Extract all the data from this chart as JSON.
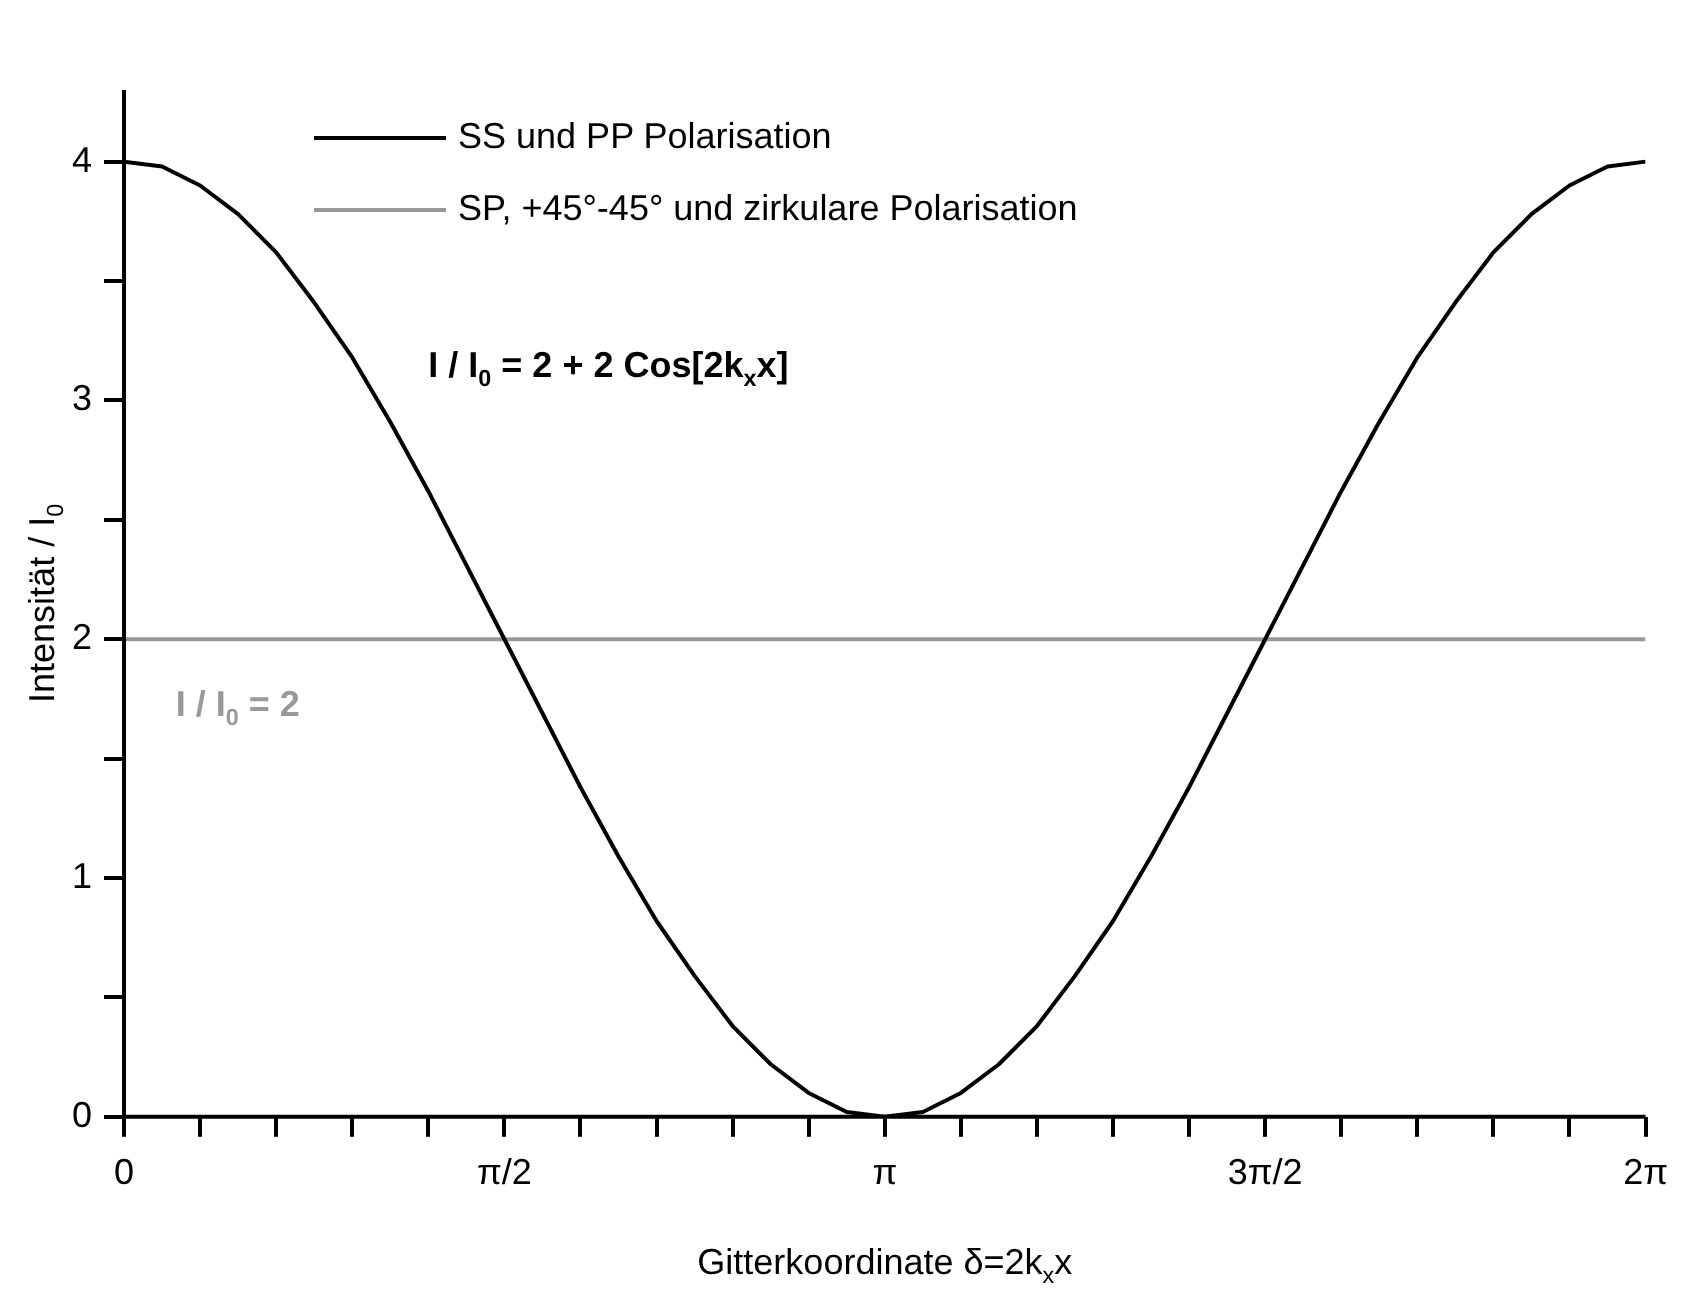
{
  "chart_data": {
    "type": "line",
    "xlabel": "Gitterkoordinate δ=2k$_{x}$x",
    "ylabel": "Intensität / I$_{0}$",
    "xlim": [
      0,
      6.2832
    ],
    "ylim": [
      0,
      4.3
    ],
    "xticks": [
      0,
      {
        "value": 0.3142,
        "label": null
      },
      {
        "value": 0.6283,
        "label": null
      },
      {
        "value": 0.9425,
        "label": null
      },
      {
        "value": 1.2566,
        "label": null
      },
      {
        "value": 1.5708,
        "label": "π/2"
      },
      {
        "value": 1.885,
        "label": null
      },
      {
        "value": 2.1991,
        "label": null
      },
      {
        "value": 2.5133,
        "label": null
      },
      {
        "value": 2.8274,
        "label": null
      },
      {
        "value": 3.1416,
        "label": "π"
      },
      {
        "value": 3.4558,
        "label": null
      },
      {
        "value": 3.7699,
        "label": null
      },
      {
        "value": 4.0841,
        "label": null
      },
      {
        "value": 4.3982,
        "label": null
      },
      {
        "value": 4.7124,
        "label": "3π/2"
      },
      {
        "value": 5.0265,
        "label": null
      },
      {
        "value": 5.3407,
        "label": null
      },
      {
        "value": 5.6549,
        "label": null
      },
      {
        "value": 5.969,
        "label": null
      },
      {
        "value": 6.2832,
        "label": "2π"
      }
    ],
    "yticks": [
      0,
      {
        "value": 0.5,
        "label": null
      },
      1,
      {
        "value": 1.5,
        "label": null
      },
      2,
      {
        "value": 2.5,
        "label": null
      },
      3,
      {
        "value": 3.5,
        "label": null
      },
      4
    ],
    "grid": false,
    "legend": "top left",
    "marker": "none",
    "line_style": "solid",
    "series": [
      {
        "name": "SS und PP Polarisation",
        "color": "#000000",
        "x": [
          0,
          0.1571,
          0.3142,
          0.4712,
          0.6283,
          0.7854,
          0.9425,
          1.0996,
          1.2566,
          1.4137,
          1.5708,
          1.7279,
          1.885,
          2.042,
          2.1991,
          2.3562,
          2.5133,
          2.6704,
          2.8274,
          2.9845,
          3.1416,
          3.2987,
          3.4558,
          3.6128,
          3.7699,
          3.927,
          4.0841,
          4.2412,
          4.3982,
          4.5553,
          4.7124,
          4.8695,
          5.0265,
          5.1836,
          5.3407,
          5.4978,
          5.6549,
          5.8119,
          5.969,
          6.1261,
          6.2832
        ],
        "values": [
          4,
          3.98,
          3.9,
          3.78,
          3.62,
          3.41,
          3.18,
          2.91,
          2.62,
          2.31,
          2,
          1.69,
          1.38,
          1.09,
          0.82,
          0.59,
          0.38,
          0.22,
          0.1,
          0.02,
          0,
          0.02,
          0.1,
          0.22,
          0.38,
          0.59,
          0.82,
          1.09,
          1.38,
          1.69,
          2,
          2.31,
          2.62,
          2.91,
          3.18,
          3.41,
          3.62,
          3.78,
          3.9,
          3.98,
          4
        ]
      },
      {
        "name": "SP, +45°-45° und zirkulare Polarisation",
        "color": "#999999",
        "x": [
          0,
          6.2832
        ],
        "values": [
          2,
          2
        ]
      }
    ],
    "annotations": [
      "I / I$_{0}$ = 2 + 2 Cos[2k$_{x}$x]",
      "I / I$_{0}$ = 2"
    ]
  }
}
